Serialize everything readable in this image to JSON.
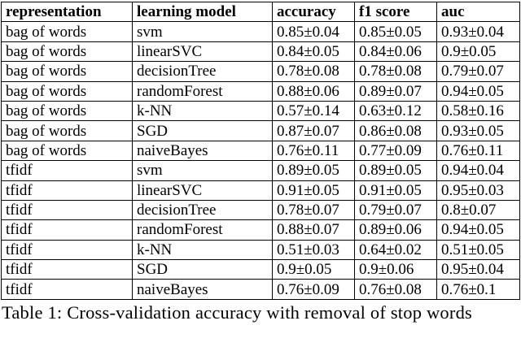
{
  "table": {
    "columns": [
      "representation",
      "learning model",
      "accuracy",
      "f1 score",
      "auc"
    ],
    "rows": [
      [
        "bag of words",
        "svm",
        "0.85±0.04",
        "0.85±0.05",
        "0.93±0.04"
      ],
      [
        "bag of words",
        "linearSVC",
        "0.84±0.05",
        "0.84±0.06",
        "0.9±0.05"
      ],
      [
        "bag of words",
        "decisionTree",
        "0.78±0.08",
        "0.78±0.08",
        "0.79±0.07"
      ],
      [
        "bag of words",
        "randomForest",
        "0.88±0.06",
        "0.89±0.07",
        "0.94±0.05"
      ],
      [
        "bag of words",
        "k-NN",
        "0.57±0.14",
        "0.63±0.12",
        "0.58±0.16"
      ],
      [
        "bag of words",
        "SGD",
        "0.87±0.07",
        "0.86±0.08",
        "0.93±0.05"
      ],
      [
        "bag of words",
        "naiveBayes",
        "0.76±0.11",
        "0.77±0.09",
        "0.76±0.11"
      ],
      [
        "tfidf",
        "svm",
        "0.89±0.05",
        "0.89±0.05",
        "0.94±0.04"
      ],
      [
        "tfidf",
        "linearSVC",
        "0.91±0.05",
        "0.91±0.05",
        "0.95±0.03"
      ],
      [
        "tfidf",
        "decisionTree",
        "0.78±0.07",
        "0.79±0.07",
        "0.8±0.07"
      ],
      [
        "tfidf",
        "randomForest",
        "0.88±0.07",
        "0.89±0.06",
        "0.94±0.05"
      ],
      [
        "tfidf",
        "k-NN",
        "0.51±0.03",
        "0.64±0.02",
        "0.51±0.05"
      ],
      [
        "tfidf",
        "SGD",
        "0.9±0.05",
        "0.9±0.06",
        "0.95±0.04"
      ],
      [
        "tfidf",
        "naiveBayes",
        "0.76±0.09",
        "0.76±0.08",
        "0.76±0.1"
      ]
    ]
  },
  "caption": "Table 1: Cross-validation accuracy with removal of stop words",
  "colors": {
    "text": "#000000",
    "background": "#ffffff",
    "border": "#000000"
  }
}
